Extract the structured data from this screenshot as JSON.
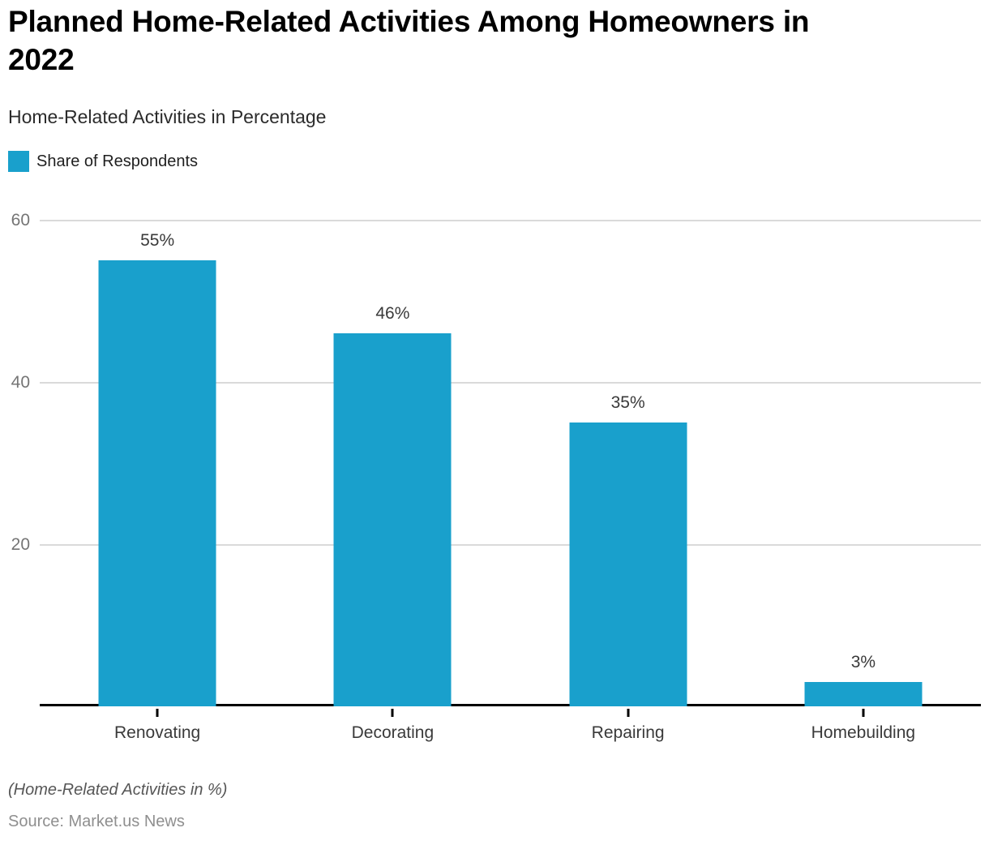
{
  "header": {
    "title": "Planned Home-Related Activities Among Homeowners in 2022",
    "subtitle": "Home-Related Activities in Percentage"
  },
  "legend": {
    "label": "Share of Respondents",
    "swatch_color": "#19A0CC"
  },
  "chart_data": {
    "type": "bar",
    "title": "Planned Home-Related Activities Among Homeowners in 2022",
    "subtitle": "Home-Related Activities in Percentage",
    "categories": [
      "Renovating",
      "Decorating",
      "Repairing",
      "Homebuilding"
    ],
    "series": [
      {
        "name": "Share of Respondents",
        "values": [
          55,
          46,
          35,
          3
        ]
      }
    ],
    "value_labels": [
      "55%",
      "46%",
      "35%",
      "3%"
    ],
    "xlabel": "",
    "ylabel": "",
    "ylim": [
      0,
      60
    ],
    "y_ticks": [
      20,
      40,
      60
    ],
    "grid": "horizontal-only",
    "legend_position": "top-left",
    "bar_color": "#19A0CC"
  },
  "footer": {
    "note": "(Home-Related Activities in %)",
    "source": "Source: Market.us News"
  },
  "colors": {
    "bar": "#19A0CC",
    "grid": "#DADADA",
    "axis": "#000000",
    "y_tick_label": "#757575",
    "value_label": "#3A3A3A",
    "category_label": "#3A3A3A",
    "note": "#565656",
    "source": "#8F8F8F",
    "title": "#000000",
    "subtitle": "#2B2B2B"
  }
}
